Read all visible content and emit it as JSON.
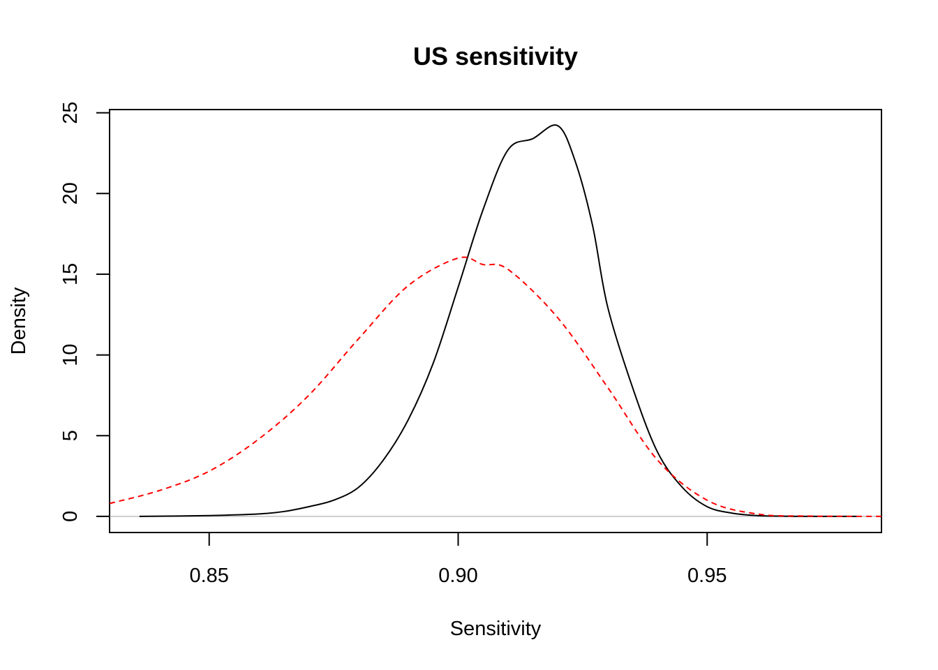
{
  "chart_data": {
    "type": "line",
    "title": "US sensitivity",
    "xlabel": "Sensitivity",
    "ylabel": "Density",
    "xlim": [
      0.83,
      0.985
    ],
    "ylim": [
      -1,
      25.2
    ],
    "x_ticks": [
      0.85,
      0.9,
      0.95
    ],
    "x_tick_labels": [
      "0.85",
      "0.90",
      "0.95"
    ],
    "y_ticks": [
      0,
      5,
      10,
      15,
      20,
      25
    ],
    "y_tick_labels": [
      "0",
      "5",
      "10",
      "15",
      "20",
      "25"
    ],
    "grid": false,
    "zero_line": {
      "y": 0,
      "color": "#bebebe"
    },
    "series": [
      {
        "color": "#000000",
        "dash": "solid",
        "x": [
          0.836,
          0.85,
          0.86,
          0.865,
          0.87,
          0.875,
          0.88,
          0.885,
          0.89,
          0.895,
          0.9,
          0.905,
          0.91,
          0.915,
          0.92,
          0.9235,
          0.927,
          0.93,
          0.935,
          0.94,
          0.945,
          0.95,
          0.955,
          0.96,
          0.965,
          0.97,
          0.975,
          0.98
        ],
        "y": [
          0.0,
          0.05,
          0.15,
          0.3,
          0.6,
          1.0,
          1.8,
          3.5,
          6.0,
          9.5,
          14.2,
          19.0,
          22.7,
          23.4,
          24.2,
          22.0,
          18.0,
          13.0,
          8.0,
          4.0,
          1.8,
          0.6,
          0.2,
          0.05,
          0.01,
          0.0,
          0.0,
          0.0
        ]
      },
      {
        "color": "#ff0000",
        "dash": "dashed",
        "x": [
          0.83,
          0.84,
          0.85,
          0.86,
          0.87,
          0.88,
          0.89,
          0.9,
          0.905,
          0.91,
          0.92,
          0.93,
          0.94,
          0.95,
          0.96,
          0.97,
          0.985
        ],
        "y": [
          0.8,
          1.6,
          2.8,
          4.8,
          7.5,
          11.0,
          14.3,
          16.0,
          15.6,
          15.3,
          12.3,
          8.0,
          3.5,
          1.0,
          0.15,
          0.02,
          0.0
        ]
      }
    ]
  }
}
